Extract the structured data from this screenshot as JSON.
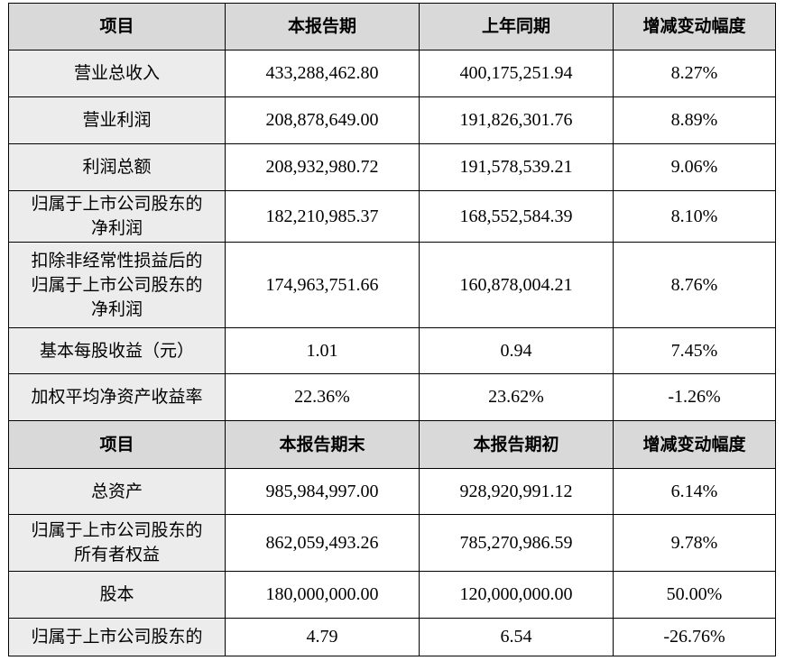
{
  "table1": {
    "headers": [
      "项目",
      "本报告期",
      "上年同期",
      "增减变动幅度"
    ],
    "rows": [
      {
        "label": [
          "营业总收入"
        ],
        "current": "433,288,462.80",
        "previous": "400,175,251.94",
        "change": "8.27%"
      },
      {
        "label": [
          "营业利润"
        ],
        "current": "208,878,649.00",
        "previous": "191,826,301.76",
        "change": "8.89%"
      },
      {
        "label": [
          "利润总额"
        ],
        "current": "208,932,980.72",
        "previous": "191,578,539.21",
        "change": "9.06%"
      },
      {
        "label": [
          "归属于上市公司股东的",
          "净利润"
        ],
        "current": "182,210,985.37",
        "previous": "168,552,584.39",
        "change": "8.10%"
      },
      {
        "label": [
          "扣除非经常性损益后的",
          "归属于上市公司股东的",
          "净利润"
        ],
        "current": "174,963,751.66",
        "previous": "160,878,004.21",
        "change": "8.76%"
      },
      {
        "label": [
          "基本每股收益（元）"
        ],
        "current": "1.01",
        "previous": "0.94",
        "change": "7.45%"
      },
      {
        "label": [
          "加权平均净资产收益率"
        ],
        "current": "22.36%",
        "previous": "23.62%",
        "change": "-1.26%"
      }
    ]
  },
  "table2": {
    "headers": [
      "项目",
      "本报告期末",
      "本报告期初",
      "增减变动幅度"
    ],
    "rows": [
      {
        "label": [
          "总资产"
        ],
        "current": "985,984,997.00",
        "previous": "928,920,991.12",
        "change": "6.14%"
      },
      {
        "label": [
          "归属于上市公司股东的",
          "所有者权益"
        ],
        "current": "862,059,493.26",
        "previous": "785,270,986.59",
        "change": "9.78%"
      },
      {
        "label": [
          "股本"
        ],
        "current": "180,000,000.00",
        "previous": "120,000,000.00",
        "change": "50.00%"
      },
      {
        "label": [
          "归属于上市公司股东的"
        ],
        "current": "4.79",
        "previous": "6.54",
        "change": "-26.76%"
      }
    ]
  }
}
